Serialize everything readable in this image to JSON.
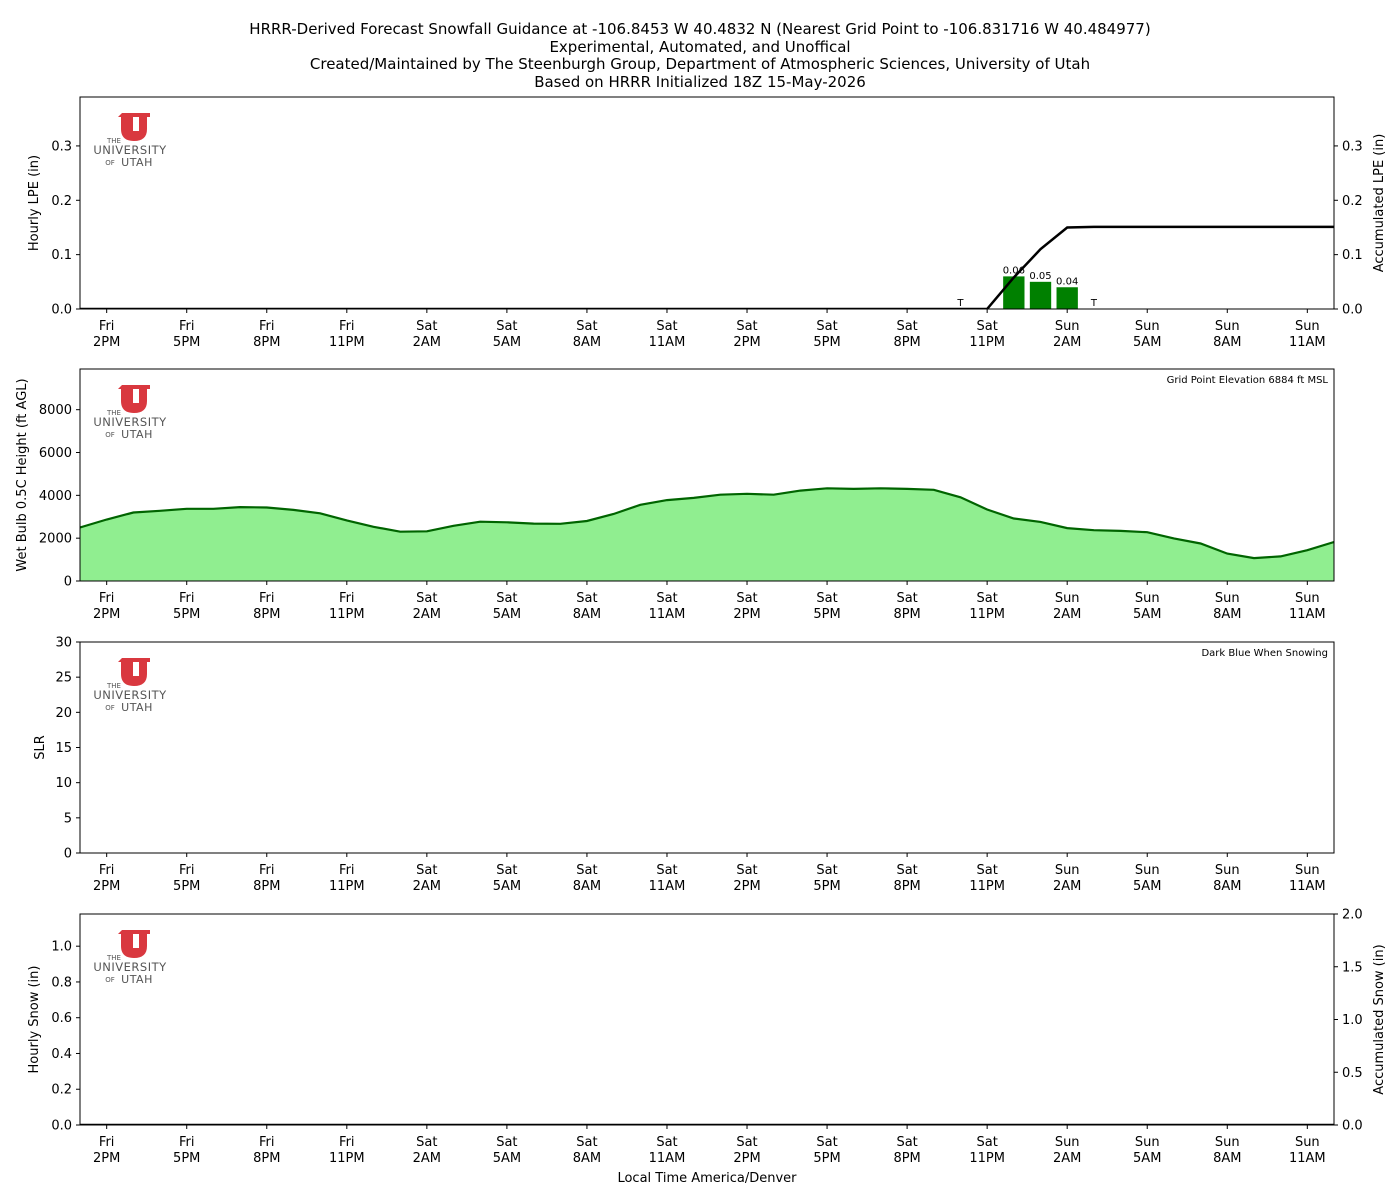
{
  "title_lines": [
    "HRRR-Derived Forecast Snowfall Guidance at -106.8453 W 40.4832 N (Nearest Grid Point to -106.831716 W 40.484977)",
    "Experimental, Automated, and Unoffical",
    "Created/Maintained by The Steenburgh Group, Department of Atmospheric Sciences, University of Utah",
    "Based on HRRR Initialized 18Z 15-May-2026"
  ],
  "logo": {
    "top": "THE",
    "middle": "UNIVERSITY",
    "of": "OF",
    "bottom": "UTAH",
    "color": "#d9383f"
  },
  "xlabel": "Local Time America/Denver",
  "time_ticks": [
    {
      "hour": 1,
      "day": "Fri",
      "time": "2PM"
    },
    {
      "hour": 4,
      "day": "Fri",
      "time": "5PM"
    },
    {
      "hour": 7,
      "day": "Fri",
      "time": "8PM"
    },
    {
      "hour": 10,
      "day": "Fri",
      "time": "11PM"
    },
    {
      "hour": 13,
      "day": "Sat",
      "time": "2AM"
    },
    {
      "hour": 16,
      "day": "Sat",
      "time": "5AM"
    },
    {
      "hour": 19,
      "day": "Sat",
      "time": "8AM"
    },
    {
      "hour": 22,
      "day": "Sat",
      "time": "11AM"
    },
    {
      "hour": 25,
      "day": "Sat",
      "time": "2PM"
    },
    {
      "hour": 28,
      "day": "Sat",
      "time": "5PM"
    },
    {
      "hour": 31,
      "day": "Sat",
      "time": "8PM"
    },
    {
      "hour": 34,
      "day": "Sat",
      "time": "11PM"
    },
    {
      "hour": 37,
      "day": "Sun",
      "time": "2AM"
    },
    {
      "hour": 40,
      "day": "Sun",
      "time": "5AM"
    },
    {
      "hour": 43,
      "day": "Sun",
      "time": "8AM"
    },
    {
      "hour": 46,
      "day": "Sun",
      "time": "11AM"
    }
  ],
  "colors": {
    "lpe_bar": "#008000",
    "wetbulb_fill": "#90ee90",
    "wetbulb_line": "#006400",
    "accum_line": "#000000"
  },
  "chart_data": [
    {
      "type": "bar",
      "name": "lpe",
      "ylabel": "Hourly LPE (in)",
      "ylabel_right": "Accumulated LPE (in)",
      "xlim": [
        0,
        47
      ],
      "ylim": [
        0,
        0.39
      ],
      "yticks": [
        "0.0",
        "0.1",
        "0.2",
        "0.3"
      ],
      "bars": [
        {
          "hour": 35,
          "value": 0.06,
          "label": "0.06"
        },
        {
          "hour": 36,
          "value": 0.05,
          "label": "0.05"
        },
        {
          "hour": 37,
          "value": 0.04,
          "label": "0.04"
        }
      ],
      "trace_labels": [
        {
          "hour": 33,
          "label": "T"
        },
        {
          "hour": 38,
          "label": "T"
        }
      ],
      "accumulated": [
        {
          "hour": 0,
          "value": 0.0
        },
        {
          "hour": 34,
          "value": 0.0
        },
        {
          "hour": 35,
          "value": 0.058
        },
        {
          "hour": 36,
          "value": 0.11
        },
        {
          "hour": 37,
          "value": 0.15
        },
        {
          "hour": 38,
          "value": 0.151
        },
        {
          "hour": 47,
          "value": 0.151
        }
      ]
    },
    {
      "type": "area",
      "name": "wetbulb",
      "ylabel": "Wet Bulb 0.5C Height (ft AGL)",
      "annotation": "Grid Point Elevation 6884 ft MSL",
      "xlim": [
        0,
        47
      ],
      "ylim": [
        0,
        9900
      ],
      "yticks": [
        "0",
        "2000",
        "4000",
        "6000",
        "8000"
      ],
      "x": [
        0,
        1,
        2,
        3,
        4,
        5,
        6,
        7,
        8,
        9,
        10,
        11,
        12,
        13,
        14,
        15,
        16,
        17,
        18,
        19,
        20,
        21,
        22,
        23,
        24,
        25,
        26,
        27,
        28,
        29,
        30,
        31,
        32,
        33,
        34,
        35,
        36,
        37,
        38,
        39,
        40,
        41,
        42,
        43,
        44,
        45,
        46,
        47
      ],
      "values": [
        2500,
        2870,
        3200,
        3280,
        3370,
        3370,
        3450,
        3430,
        3320,
        3160,
        2830,
        2530,
        2300,
        2320,
        2580,
        2770,
        2740,
        2680,
        2670,
        2800,
        3130,
        3560,
        3780,
        3880,
        4030,
        4070,
        4030,
        4220,
        4330,
        4300,
        4330,
        4300,
        4260,
        3910,
        3340,
        2920,
        2760,
        2470,
        2370,
        2340,
        2280,
        1990,
        1750,
        1280,
        1070,
        1150,
        1440,
        1820
      ]
    },
    {
      "type": "line",
      "name": "slr",
      "ylabel": "SLR",
      "annotation": "Dark Blue When Snowing",
      "xlim": [
        0,
        47
      ],
      "ylim": [
        0,
        30
      ],
      "yticks": [
        "0",
        "5",
        "10",
        "15",
        "20",
        "25",
        "30"
      ],
      "values": []
    },
    {
      "type": "bar",
      "name": "snow",
      "ylabel": "Hourly Snow (in)",
      "ylabel_right": "Accumulated Snow (in)",
      "xlim": [
        0,
        47
      ],
      "ylim": [
        0,
        1.18
      ],
      "ylim_right": [
        0,
        2.0
      ],
      "yticks": [
        "0.0",
        "0.2",
        "0.4",
        "0.6",
        "0.8",
        "1.0"
      ],
      "yticks_right": [
        "0.0",
        "0.5",
        "1.0",
        "1.5",
        "2.0"
      ],
      "bars": [],
      "accumulated": [
        {
          "hour": 0,
          "value": 0.0
        },
        {
          "hour": 47,
          "value": 0.0
        }
      ]
    }
  ]
}
